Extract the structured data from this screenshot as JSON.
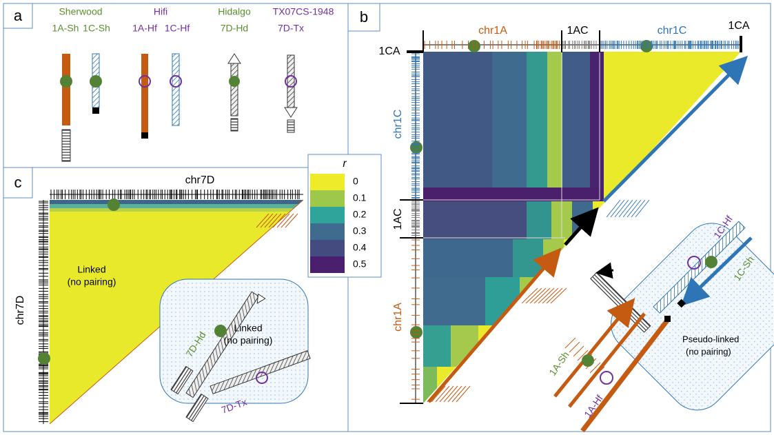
{
  "panel_a": {
    "label": "a",
    "cultivars": [
      {
        "name": "Sherwood",
        "lines": [
          "1A-Sh",
          "1C-Sh"
        ]
      },
      {
        "name": "Hifi",
        "lines": [
          "1A-Hf",
          "1C-Hf"
        ]
      },
      {
        "name": "Hidalgo",
        "lines": [
          "7D-Hd"
        ]
      },
      {
        "name": "TX07CS-1948",
        "lines": [
          "7D-Tx"
        ]
      }
    ]
  },
  "panel_b": {
    "label": "b",
    "top_axis": [
      "chr1A",
      "1AC",
      "chr1C",
      "1CA"
    ],
    "left_axis": [
      "1CA",
      "chr1C",
      "1AC",
      "chr1A"
    ],
    "diagram": {
      "chromosomes": [
        "1C-Hf",
        "1C-Sh",
        "1A-Sh",
        "1A-Hf"
      ],
      "note": [
        "Pseudo-linked",
        "(no pairing)"
      ]
    }
  },
  "panel_c": {
    "label": "c",
    "top_axis": "chr7D",
    "left_axis": "chr7D",
    "heatmap_note": [
      "Linked",
      "(no pairing)"
    ],
    "diagram": {
      "note": [
        "Linked",
        "(no pairing)"
      ],
      "chromosomes": [
        "7D-Hd",
        "7D-Tx"
      ]
    }
  },
  "legend": {
    "title": "r",
    "labels": [
      "0",
      "0.1",
      "0.2",
      "0.3",
      "0.4",
      "0.5"
    ]
  }
}
